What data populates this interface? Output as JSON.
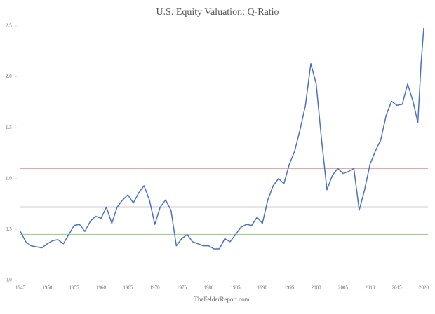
{
  "chart_data": {
    "type": "line",
    "title": "U.S. Equity Valuation: Q-Ratio",
    "source": "TheFelderReport.com",
    "x": [
      1945,
      1946,
      1947,
      1948,
      1949,
      1950,
      1951,
      1952,
      1953,
      1954,
      1955,
      1956,
      1957,
      1958,
      1959,
      1960,
      1961,
      1962,
      1963,
      1964,
      1965,
      1966,
      1967,
      1968,
      1969,
      1970,
      1971,
      1972,
      1973,
      1974,
      1975,
      1976,
      1977,
      1978,
      1979,
      1980,
      1981,
      1982,
      1983,
      1984,
      1985,
      1986,
      1987,
      1988,
      1989,
      1990,
      1991,
      1992,
      1993,
      1994,
      1995,
      1996,
      1997,
      1998,
      1999,
      2000,
      2001,
      2002,
      2003,
      2004,
      2005,
      2006,
      2007,
      2008,
      2009,
      2010,
      2011,
      2012,
      2013,
      2014,
      2015,
      2016,
      2017,
      2018,
      2018.9,
      2019.5,
      2020
    ],
    "series": [
      {
        "name": "Q-Ratio",
        "color": "#4a72c4",
        "values": [
          0.48,
          0.38,
          0.34,
          0.33,
          0.32,
          0.36,
          0.39,
          0.4,
          0.36,
          0.45,
          0.54,
          0.55,
          0.48,
          0.58,
          0.63,
          0.61,
          0.72,
          0.56,
          0.72,
          0.79,
          0.84,
          0.76,
          0.86,
          0.93,
          0.79,
          0.55,
          0.72,
          0.79,
          0.69,
          0.34,
          0.41,
          0.45,
          0.38,
          0.36,
          0.34,
          0.34,
          0.31,
          0.31,
          0.41,
          0.38,
          0.45,
          0.52,
          0.55,
          0.54,
          0.62,
          0.56,
          0.79,
          0.93,
          1.0,
          0.95,
          1.14,
          1.27,
          1.48,
          1.72,
          2.13,
          1.93,
          1.38,
          0.89,
          1.03,
          1.1,
          1.05,
          1.07,
          1.1,
          0.69,
          0.89,
          1.14,
          1.27,
          1.38,
          1.62,
          1.76,
          1.72,
          1.73,
          1.93,
          1.76,
          1.55,
          2.13,
          2.48
        ]
      }
    ],
    "reference_lines": [
      {
        "value": 1.1,
        "color": "#f4a3a3"
      },
      {
        "value": 0.72,
        "color": "#9a9a9a"
      },
      {
        "value": 0.45,
        "color": "#9fd08f"
      }
    ],
    "xlim": [
      1945,
      2020
    ],
    "xticks": [
      1945,
      1950,
      1955,
      1960,
      1965,
      1970,
      1975,
      1980,
      1985,
      1990,
      1995,
      2000,
      2005,
      2010,
      2015,
      2020
    ],
    "ylim": [
      0,
      2.5
    ],
    "yticks": [
      {
        "value": 0,
        "label": "0.0"
      },
      0.5,
      {
        "value": 1,
        "label": "1.0"
      },
      1.5,
      {
        "value": 2,
        "label": "2.0"
      },
      2.5
    ]
  }
}
